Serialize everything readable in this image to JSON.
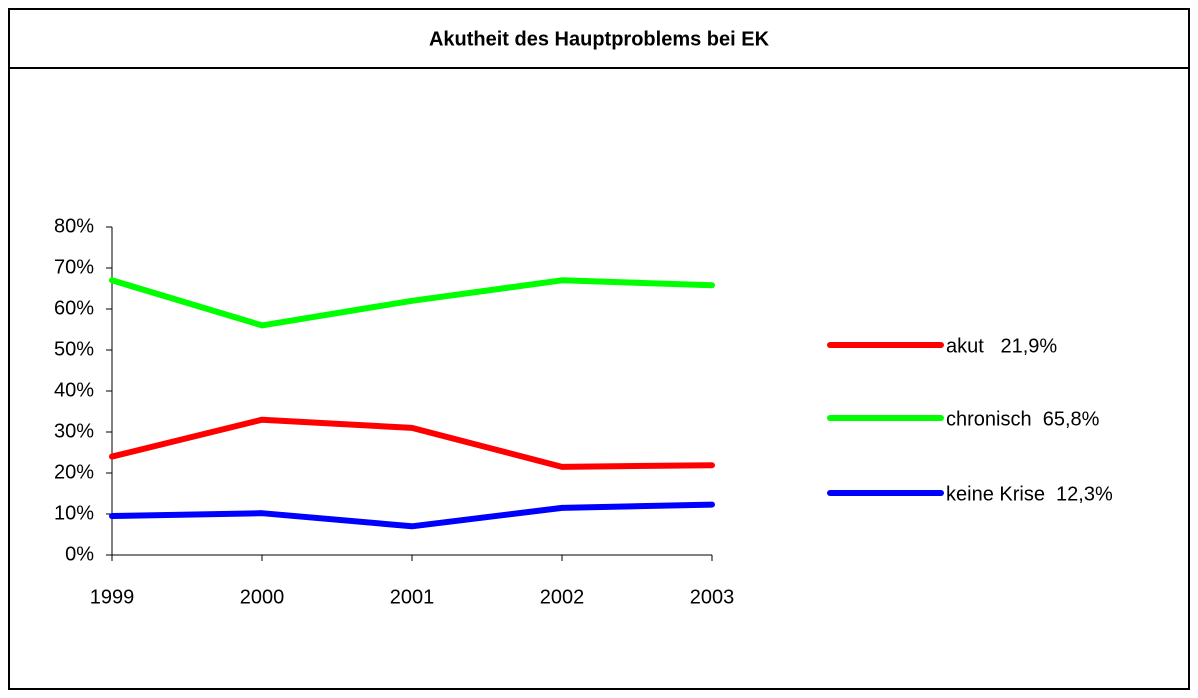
{
  "chart_data": {
    "type": "line",
    "title": "Akutheit des Hauptproblems bei EK",
    "categories": [
      "1999",
      "2000",
      "2001",
      "2002",
      "2003"
    ],
    "series": [
      {
        "name": "akut   21,9%",
        "color": "#ff0000",
        "values": [
          24,
          33,
          31,
          21.5,
          21.9
        ]
      },
      {
        "name": "chronisch  65,8%",
        "color": "#00ff00",
        "values": [
          67,
          56,
          62,
          67,
          65.8
        ]
      },
      {
        "name": "keine Krise  12,3%",
        "color": "#0000ff",
        "values": [
          9.5,
          10.2,
          7,
          11.5,
          12.3
        ]
      }
    ],
    "ylim": [
      0,
      80
    ],
    "yticks": [
      {
        "value": 0,
        "label": "0%"
      },
      {
        "value": 10,
        "label": "10%"
      },
      {
        "value": 20,
        "label": "20%"
      },
      {
        "value": 30,
        "label": "30%"
      },
      {
        "value": 40,
        "label": "40%"
      },
      {
        "value": 50,
        "label": "50%"
      },
      {
        "value": 60,
        "label": "60%"
      },
      {
        "value": 70,
        "label": "70%"
      },
      {
        "value": 80,
        "label": "80%"
      }
    ],
    "legend": "right"
  }
}
